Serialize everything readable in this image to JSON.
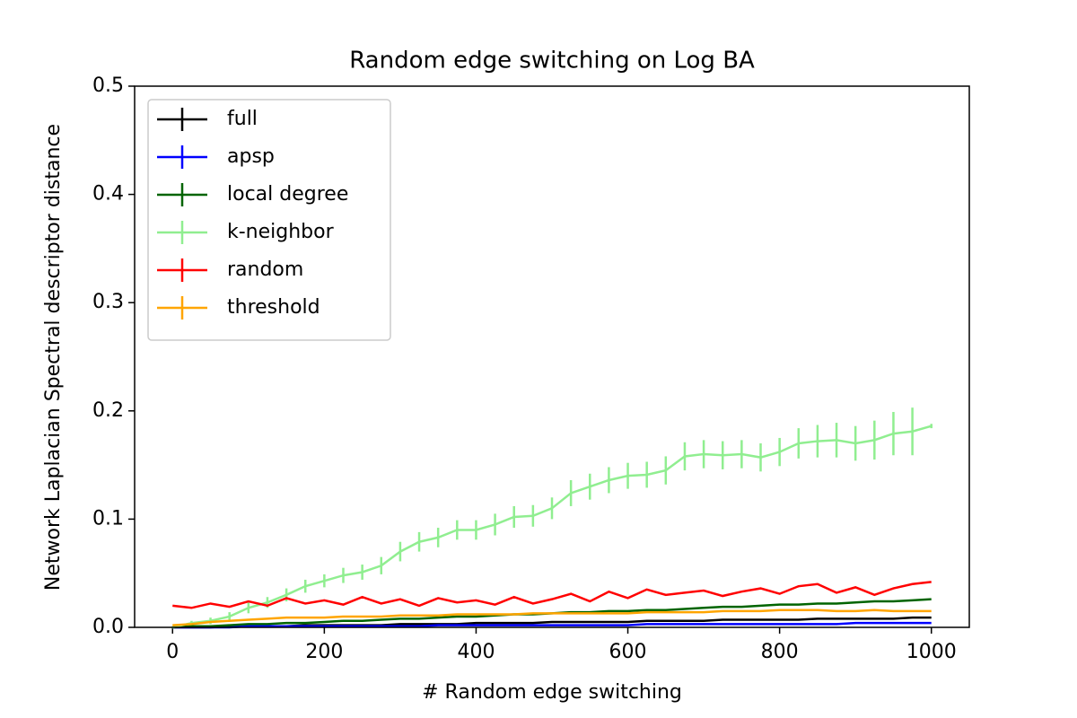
{
  "chart_data": {
    "type": "errorbar-line",
    "title": "Random edge switching on Log BA",
    "x_label": "# Random edge switching",
    "y_label": "Network Laplacian Spectral descriptor distance",
    "x": [
      0,
      25,
      50,
      75,
      100,
      125,
      150,
      175,
      200,
      225,
      250,
      275,
      300,
      325,
      350,
      375,
      400,
      425,
      450,
      475,
      500,
      525,
      550,
      575,
      600,
      625,
      650,
      675,
      700,
      725,
      750,
      775,
      800,
      825,
      850,
      875,
      900,
      925,
      950,
      975,
      1000
    ],
    "series": [
      {
        "name": "full",
        "color": "#000000",
        "values": [
          0,
          0,
          0,
          0.001,
          0.001,
          0.001,
          0.001,
          0.002,
          0.002,
          0.002,
          0.002,
          0.002,
          0.003,
          0.003,
          0.003,
          0.003,
          0.004,
          0.004,
          0.004,
          0.004,
          0.005,
          0.005,
          0.005,
          0.005,
          0.005,
          0.006,
          0.006,
          0.006,
          0.006,
          0.007,
          0.007,
          0.007,
          0.007,
          0.007,
          0.008,
          0.008,
          0.008,
          0.008,
          0.008,
          0.009,
          0.009
        ]
      },
      {
        "name": "apsp",
        "color": "#0000ff",
        "values": [
          0,
          0,
          0,
          0,
          0.001,
          0.001,
          0.001,
          0.001,
          0.001,
          0.001,
          0.001,
          0.001,
          0.001,
          0.001,
          0.002,
          0.002,
          0.002,
          0.002,
          0.002,
          0.002,
          0.002,
          0.002,
          0.002,
          0.002,
          0.002,
          0.003,
          0.003,
          0.003,
          0.003,
          0.003,
          0.003,
          0.003,
          0.003,
          0.003,
          0.003,
          0.003,
          0.004,
          0.004,
          0.004,
          0.004,
          0.004
        ]
      },
      {
        "name": "local degree",
        "color": "#006400",
        "values": [
          0,
          0.001,
          0.001,
          0.002,
          0.003,
          0.003,
          0.004,
          0.004,
          0.005,
          0.006,
          0.006,
          0.007,
          0.008,
          0.008,
          0.009,
          0.01,
          0.01,
          0.011,
          0.012,
          0.012,
          0.013,
          0.014,
          0.014,
          0.015,
          0.015,
          0.016,
          0.016,
          0.017,
          0.018,
          0.019,
          0.019,
          0.02,
          0.021,
          0.021,
          0.022,
          0.022,
          0.023,
          0.024,
          0.024,
          0.025,
          0.026
        ]
      },
      {
        "name": "k-neighbor",
        "color": "#90ee90",
        "values": [
          0,
          0.004,
          0.006,
          0.01,
          0.018,
          0.023,
          0.03,
          0.038,
          0.043,
          0.048,
          0.051,
          0.057,
          0.07,
          0.079,
          0.083,
          0.09,
          0.09,
          0.095,
          0.102,
          0.103,
          0.11,
          0.124,
          0.13,
          0.136,
          0.14,
          0.141,
          0.145,
          0.158,
          0.16,
          0.159,
          0.16,
          0.157,
          0.162,
          0.17,
          0.172,
          0.173,
          0.17,
          0.173,
          0.179,
          0.181,
          0.186
        ],
        "errors": [
          0.001,
          0.002,
          0.003,
          0.004,
          0.005,
          0.005,
          0.006,
          0.006,
          0.006,
          0.007,
          0.007,
          0.008,
          0.009,
          0.009,
          0.009,
          0.009,
          0.009,
          0.01,
          0.01,
          0.01,
          0.01,
          0.012,
          0.012,
          0.012,
          0.012,
          0.012,
          0.013,
          0.013,
          0.013,
          0.013,
          0.013,
          0.013,
          0.013,
          0.014,
          0.015,
          0.016,
          0.016,
          0.018,
          0.02,
          0.022,
          0.002
        ]
      },
      {
        "name": "random",
        "color": "#ff0000",
        "values": [
          0.02,
          0.018,
          0.022,
          0.019,
          0.024,
          0.02,
          0.027,
          0.022,
          0.025,
          0.021,
          0.028,
          0.022,
          0.026,
          0.02,
          0.027,
          0.023,
          0.025,
          0.021,
          0.028,
          0.022,
          0.026,
          0.031,
          0.024,
          0.033,
          0.027,
          0.035,
          0.03,
          0.032,
          0.034,
          0.029,
          0.033,
          0.036,
          0.031,
          0.038,
          0.04,
          0.032,
          0.037,
          0.03,
          0.036,
          0.04,
          0.042
        ]
      },
      {
        "name": "threshold",
        "color": "#ffa500",
        "values": [
          0.002,
          0.003,
          0.005,
          0.006,
          0.007,
          0.008,
          0.009,
          0.009,
          0.009,
          0.01,
          0.01,
          0.01,
          0.011,
          0.011,
          0.011,
          0.012,
          0.012,
          0.012,
          0.012,
          0.013,
          0.013,
          0.013,
          0.013,
          0.013,
          0.013,
          0.014,
          0.014,
          0.014,
          0.014,
          0.015,
          0.015,
          0.015,
          0.016,
          0.016,
          0.016,
          0.015,
          0.015,
          0.016,
          0.015,
          0.015,
          0.015
        ]
      }
    ],
    "xlim": [
      -50,
      1050
    ],
    "ylim": [
      0,
      0.5
    ],
    "xticks": [
      0,
      200,
      400,
      600,
      800,
      1000
    ],
    "yticks": [
      {
        "value": 0,
        "label": "0.0"
      },
      0.1,
      0.2,
      0.3,
      0.4,
      {
        "value": 0.5,
        "label": "0.5"
      }
    ],
    "legend": "upper-left"
  }
}
